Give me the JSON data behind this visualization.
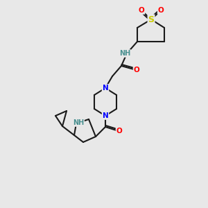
{
  "bg_color": "#e8e8e8",
  "atom_colors": {
    "N": "#0000ff",
    "O": "#ff0000",
    "S": "#cccc00",
    "C": "#1a1a1a",
    "NH": "#4a9090"
  },
  "bond_color": "#1a1a1a",
  "bond_width": 1.5,
  "font_size_atom": 7.5
}
